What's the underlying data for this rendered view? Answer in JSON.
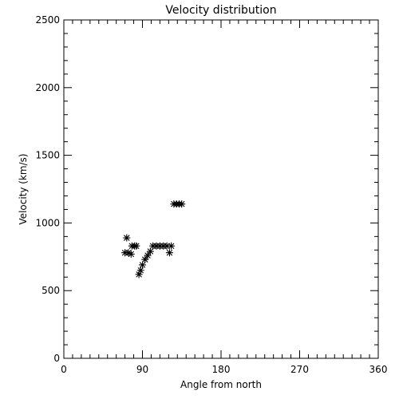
{
  "chart_data": {
    "type": "scatter",
    "title": "Velocity distribution",
    "xlabel": "Angle from north",
    "ylabel": "Velocity (km/s)",
    "xlim": [
      0,
      360
    ],
    "ylim": [
      0,
      2500
    ],
    "xticks": [
      "0",
      "90",
      "180",
      "270",
      "360"
    ],
    "yticks": [
      "0",
      "500",
      "1000",
      "1500",
      "2000",
      "2500"
    ],
    "marker": "asterisk",
    "grid": false,
    "points": [
      {
        "x": 70,
        "y": 780
      },
      {
        "x": 72,
        "y": 890
      },
      {
        "x": 74,
        "y": 780
      },
      {
        "x": 77,
        "y": 770
      },
      {
        "x": 78,
        "y": 830
      },
      {
        "x": 81,
        "y": 830
      },
      {
        "x": 83,
        "y": 830
      },
      {
        "x": 86,
        "y": 620
      },
      {
        "x": 88,
        "y": 650
      },
      {
        "x": 90,
        "y": 690
      },
      {
        "x": 93,
        "y": 730
      },
      {
        "x": 96,
        "y": 760
      },
      {
        "x": 99,
        "y": 790
      },
      {
        "x": 102,
        "y": 830
      },
      {
        "x": 106,
        "y": 830
      },
      {
        "x": 110,
        "y": 830
      },
      {
        "x": 114,
        "y": 830
      },
      {
        "x": 118,
        "y": 830
      },
      {
        "x": 121,
        "y": 780
      },
      {
        "x": 123,
        "y": 830
      },
      {
        "x": 126,
        "y": 1140
      },
      {
        "x": 129,
        "y": 1140
      },
      {
        "x": 132,
        "y": 1140
      },
      {
        "x": 135,
        "y": 1140
      }
    ]
  }
}
